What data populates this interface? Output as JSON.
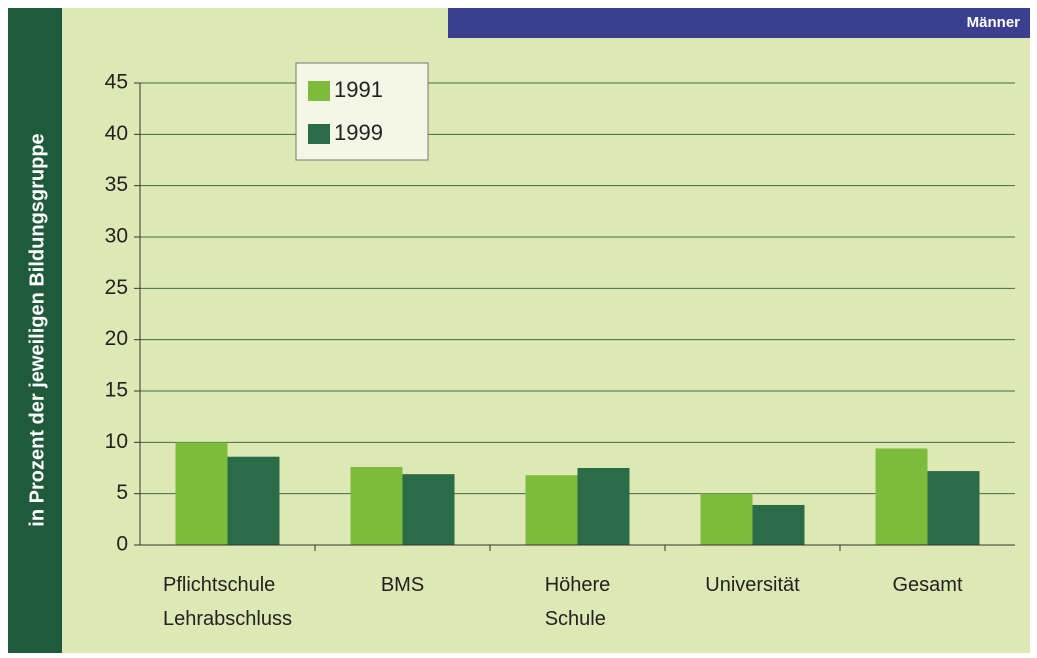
{
  "chart_data": {
    "type": "bar",
    "banner": "Männer",
    "y_label": "in Prozent der jeweiligen Bildungsgruppe",
    "categories": [
      "Pflichtschule Lehrabschluss",
      "BMS",
      "Höhere Schule",
      "Universität",
      "Gesamt"
    ],
    "series": [
      {
        "name": "1991",
        "color": "#7dbb3c",
        "values": [
          10,
          7.6,
          6.8,
          5.0,
          9.4
        ]
      },
      {
        "name": "1999",
        "color": "#2a6b48",
        "values": [
          8.6,
          6.9,
          7.5,
          3.9,
          7.2
        ]
      }
    ],
    "ylim": [
      0,
      45
    ],
    "yticks": [
      0,
      5,
      10,
      15,
      20,
      25,
      30,
      35,
      40,
      45
    ],
    "grid": true,
    "legend": "top-left"
  }
}
